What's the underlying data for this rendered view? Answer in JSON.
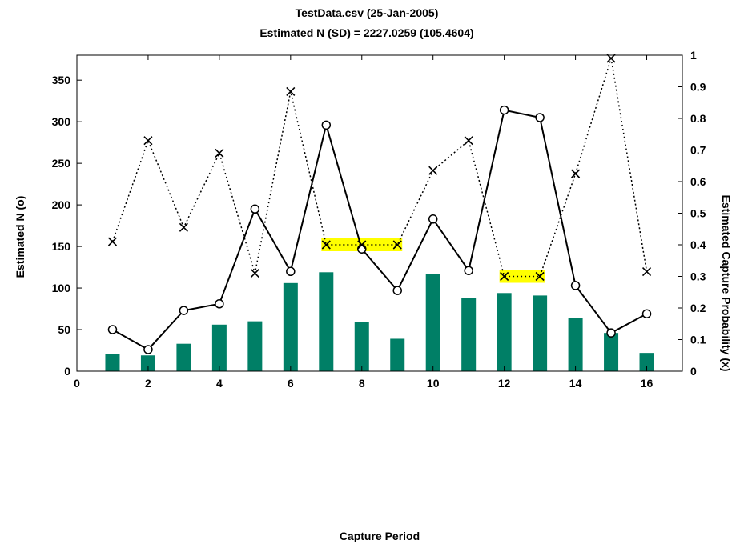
{
  "chart_data": {
    "type": "bar",
    "title": "TestData.csv (25-Jan-2005)",
    "subtitle": "Estimated N (SD) = 2227.0259 (105.4604)",
    "xlabel": "Capture Period",
    "ylabel_left": "Estimated N  (o)",
    "ylabel_right": "Estimated Capture Probability (x)",
    "xlim": [
      0,
      17
    ],
    "ylim_left": [
      0,
      380
    ],
    "ylim_right": [
      0,
      1
    ],
    "x_ticks": [
      0,
      2,
      4,
      6,
      8,
      10,
      12,
      14,
      16
    ],
    "y_ticks_left": [
      0,
      50,
      100,
      150,
      200,
      250,
      300,
      350
    ],
    "y_ticks_right": [
      0,
      0.1,
      0.2,
      0.3,
      0.4,
      0.5,
      0.6,
      0.7,
      0.8,
      0.9,
      1
    ],
    "grid": false,
    "colors": {
      "bars": "#007f66",
      "highlight": "#ffff00",
      "lines": "#000000"
    },
    "x": [
      1,
      2,
      3,
      4,
      5,
      6,
      7,
      8,
      9,
      10,
      11,
      12,
      13,
      14,
      15,
      16
    ],
    "bars": [
      21,
      19,
      33,
      56,
      60,
      106,
      119,
      59,
      39,
      117,
      88,
      94,
      91,
      64,
      46,
      22
    ],
    "estimated_n": [
      50,
      26,
      73,
      81,
      195,
      120,
      296,
      147,
      97,
      183,
      121,
      314,
      305,
      103,
      46,
      69
    ],
    "capture_probability": [
      0.41,
      0.73,
      0.455,
      0.69,
      0.31,
      0.885,
      0.4,
      0.4,
      0.4,
      0.635,
      0.73,
      0.3,
      0.3,
      0.625,
      0.99,
      0.315
    ],
    "highlighted_segments": [
      [
        7,
        9
      ],
      [
        12,
        13
      ]
    ]
  }
}
